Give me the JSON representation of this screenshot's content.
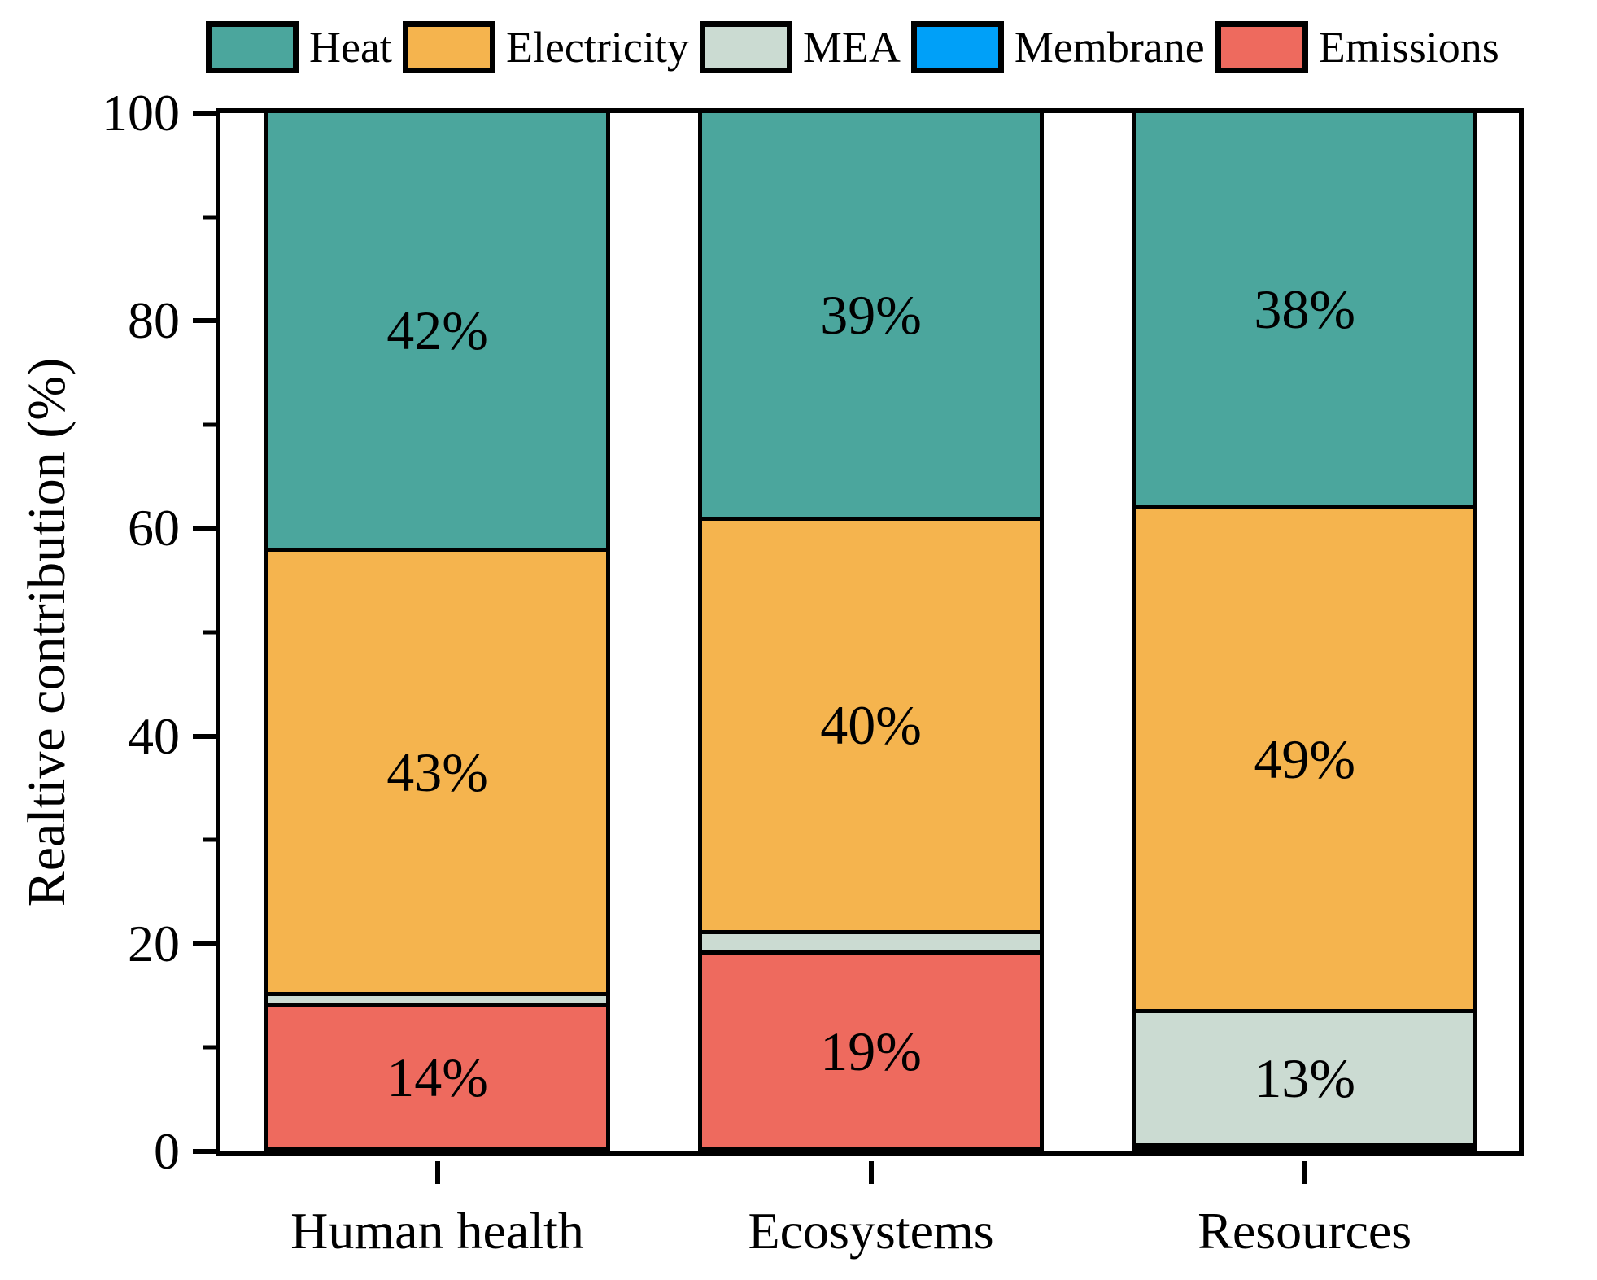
{
  "figure": {
    "background": "#ffffff",
    "frame_color": "#000000"
  },
  "legend": {
    "position": "top",
    "items": [
      {
        "label": "Heat",
        "color": "#4BA69D"
      },
      {
        "label": "Electricity",
        "color": "#F5B44E"
      },
      {
        "label": "MEA",
        "color": "#CBDBD2"
      },
      {
        "label": "Membrane",
        "color": "#00A0F8"
      },
      {
        "label": "Emissions",
        "color": "#EE6A5E"
      }
    ]
  },
  "chart_data": {
    "type": "bar",
    "stacked": true,
    "orientation": "vertical",
    "title": "",
    "xlabel": "",
    "ylabel": "Realtive contribution (%)",
    "ylim": [
      0,
      100
    ],
    "yticks_major": [
      0,
      20,
      40,
      60,
      80,
      100
    ],
    "yticks_minor": [
      10,
      30,
      50,
      70,
      90
    ],
    "grid": false,
    "legend_position": "top",
    "categories": [
      "Human health",
      "Ecosystems",
      "Resources"
    ],
    "series": [
      {
        "name": "Heat",
        "color": "#4BA69D",
        "values": [
          42,
          39,
          38
        ],
        "labels": [
          "42%",
          "39%",
          "38%"
        ]
      },
      {
        "name": "Electricity",
        "color": "#F5B44E",
        "values": [
          43,
          40,
          49
        ],
        "labels": [
          "43%",
          "40%",
          "49%"
        ]
      },
      {
        "name": "MEA",
        "color": "#CBDBD2",
        "values": [
          1,
          2,
          13
        ],
        "labels": [
          "",
          "",
          "13%"
        ]
      },
      {
        "name": "Membrane",
        "color": "#00A0F8",
        "values": [
          0,
          0,
          0.4
        ],
        "labels": [
          "",
          "",
          ""
        ]
      },
      {
        "name": "Emissions",
        "color": "#EE6A5E",
        "values": [
          14,
          19,
          0
        ],
        "labels": [
          "14%",
          "19%",
          ""
        ]
      }
    ]
  }
}
